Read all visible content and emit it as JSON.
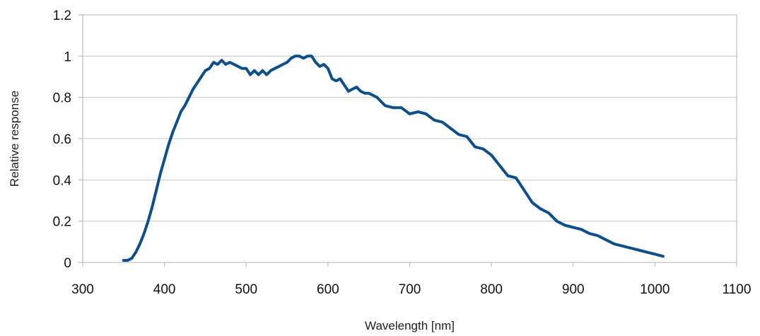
{
  "chart_data": {
    "type": "line",
    "title": "",
    "xlabel": "Wavelength [nm]",
    "ylabel": "Relative response",
    "xlim": [
      300,
      1100
    ],
    "ylim": [
      0,
      1.2
    ],
    "x_ticks": [
      300,
      400,
      500,
      600,
      700,
      800,
      900,
      1000,
      1100
    ],
    "y_ticks": [
      0,
      0.2,
      0.4,
      0.6,
      0.8,
      1,
      1.2
    ],
    "x_tick_labels": [
      "300",
      "400",
      "500",
      "600",
      "700",
      "800",
      "900",
      "1000",
      "1100"
    ],
    "y_tick_labels": [
      "0",
      "0.2",
      "0.4",
      "0.6",
      "0.8",
      "1",
      "1.2"
    ],
    "grid": "horizontal",
    "legend": "none",
    "series": [
      {
        "color": "#0d4f8b",
        "x": [
          350,
          355,
          360,
          365,
          370,
          375,
          380,
          385,
          390,
          395,
          400,
          405,
          410,
          415,
          420,
          425,
          430,
          435,
          440,
          445,
          450,
          455,
          460,
          465,
          470,
          475,
          480,
          485,
          490,
          495,
          500,
          505,
          510,
          515,
          520,
          525,
          530,
          535,
          540,
          545,
          550,
          555,
          560,
          565,
          570,
          575,
          580,
          585,
          590,
          595,
          600,
          605,
          610,
          615,
          620,
          625,
          630,
          635,
          640,
          645,
          650,
          655,
          660,
          665,
          670,
          680,
          690,
          700,
          710,
          720,
          730,
          740,
          750,
          760,
          770,
          780,
          790,
          800,
          810,
          820,
          830,
          840,
          850,
          860,
          870,
          880,
          890,
          900,
          910,
          920,
          930,
          940,
          950,
          960,
          970,
          980,
          990,
          1000,
          1010
        ],
        "y": [
          0.01,
          0.01,
          0.02,
          0.05,
          0.09,
          0.14,
          0.2,
          0.27,
          0.35,
          0.43,
          0.5,
          0.57,
          0.63,
          0.68,
          0.73,
          0.76,
          0.8,
          0.84,
          0.87,
          0.9,
          0.93,
          0.94,
          0.97,
          0.96,
          0.98,
          0.96,
          0.97,
          0.96,
          0.95,
          0.94,
          0.94,
          0.91,
          0.93,
          0.91,
          0.93,
          0.91,
          0.93,
          0.94,
          0.95,
          0.96,
          0.97,
          0.99,
          1.0,
          1.0,
          0.99,
          1.0,
          1.0,
          0.97,
          0.95,
          0.96,
          0.94,
          0.89,
          0.88,
          0.89,
          0.86,
          0.83,
          0.84,
          0.85,
          0.83,
          0.82,
          0.82,
          0.81,
          0.8,
          0.78,
          0.76,
          0.75,
          0.75,
          0.72,
          0.73,
          0.72,
          0.69,
          0.68,
          0.65,
          0.62,
          0.61,
          0.56,
          0.55,
          0.52,
          0.47,
          0.42,
          0.41,
          0.35,
          0.29,
          0.26,
          0.24,
          0.2,
          0.18,
          0.17,
          0.16,
          0.14,
          0.13,
          0.11,
          0.09,
          0.08,
          0.07,
          0.06,
          0.05,
          0.04,
          0.03
        ]
      }
    ]
  }
}
